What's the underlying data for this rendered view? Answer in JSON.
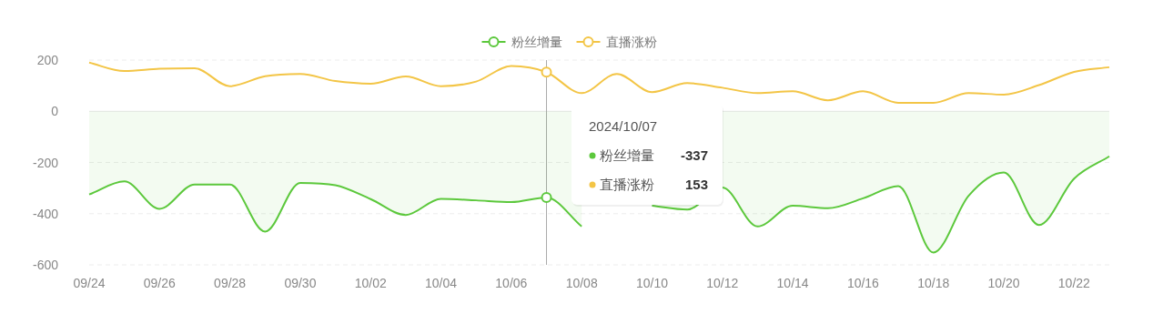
{
  "chart_data": {
    "type": "line",
    "x": [
      "--09-24",
      "--09-25",
      "--09-26",
      "--09-27",
      "--09-28",
      "--09-29",
      "--09-30",
      "--10-01",
      "--10-02",
      "--10-03",
      "--10-04",
      "--10-05",
      "--10-06",
      "--10-07",
      "--10-08",
      "--10-09",
      "--10-10",
      "--10-11",
      "--10-12",
      "--10-13",
      "--10-14",
      "--10-15",
      "--10-16",
      "--10-17",
      "--10-18",
      "--10-19",
      "--10-20",
      "--10-21",
      "--10-22",
      "--10-23"
    ],
    "series": [
      {
        "name": "粉丝增量",
        "type": "area",
        "color": "#5cc83c",
        "values": [
          -325,
          -274,
          -381,
          -286,
          -286,
          -470,
          -280,
          -289,
          -343,
          -405,
          -342,
          -348,
          -355,
          -337,
          -450,
          null,
          -369,
          -384,
          -298,
          -450,
          -369,
          -379,
          -340,
          -292,
          -552,
          -330,
          -239,
          -444,
          -263,
          -176
        ]
      },
      {
        "name": "直播涨粉",
        "color": "#f3c546",
        "values": [
          190,
          157,
          166,
          168,
          98,
          137,
          146,
          118,
          108,
          136,
          98,
          116,
          177,
          153,
          71,
          146,
          75,
          110,
          92,
          71,
          78,
          43,
          78,
          33,
          33,
          71,
          65,
          102,
          154,
          172
        ]
      }
    ],
    "xlim": [
      "--09-24",
      "--10-23"
    ],
    "xticks": [
      {
        "value": "--09-24",
        "label": "09/24"
      },
      {
        "value": "--09-26",
        "label": "09/26"
      },
      {
        "value": "--09-28",
        "label": "09/28"
      },
      {
        "value": "--09-30",
        "label": "09/30"
      },
      {
        "value": "--10-02",
        "label": "10/02"
      },
      {
        "value": "--10-04",
        "label": "10/04"
      },
      {
        "value": "--10-06",
        "label": "10/06"
      },
      {
        "value": "--10-08",
        "label": "10/08"
      },
      {
        "value": "--10-10",
        "label": "10/10"
      },
      {
        "value": "--10-12",
        "label": "10/12"
      },
      {
        "value": "--10-14",
        "label": "10/14"
      },
      {
        "value": "--10-16",
        "label": "10/16"
      },
      {
        "value": "--10-18",
        "label": "10/18"
      },
      {
        "value": "--10-20",
        "label": "10/20"
      },
      {
        "value": "--10-22",
        "label": "10/22"
      }
    ],
    "ylim": [
      -600,
      200
    ],
    "yticks": [
      -600,
      -400,
      -200,
      0,
      200
    ],
    "grid": "y",
    "legend": "top",
    "marker": "none",
    "line_style": "solid",
    "ref_lines": [
      {
        "axis": "x",
        "value": "--10-07",
        "color": "#aaaaaa"
      }
    ],
    "annotations": [
      "2024/10/07",
      "-337",
      "153"
    ]
  }
}
